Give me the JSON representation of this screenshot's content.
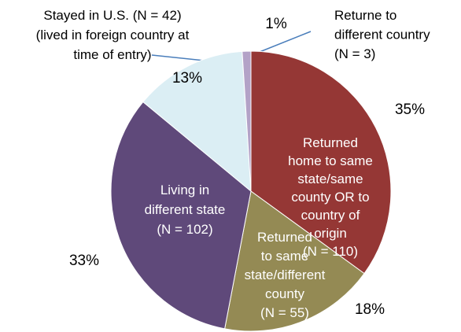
{
  "chart_data": {
    "type": "pie",
    "categories": [
      "Returned\nhome to same\nstate/same\ncounty OR to\ncountry of\norigin\n(N = 110)",
      "Returned\nto same\nstate/different\ncounty\n(N = 55)",
      "Living in\ndifferent state\n(N = 102)",
      "Stayed in U.S. (N = 42)\n(lived in foreign country at\ntime of entry)",
      "Returne to\ndifferent country\n(N = 3)"
    ],
    "values": [
      35,
      18,
      33,
      13,
      1
    ],
    "value_labels": [
      "35%",
      "18%",
      "33%",
      "13%",
      "1%"
    ],
    "colors": [
      "#953735",
      "#948a54",
      "#5f497a",
      "#dbeef4",
      "#b3a2c7"
    ]
  }
}
